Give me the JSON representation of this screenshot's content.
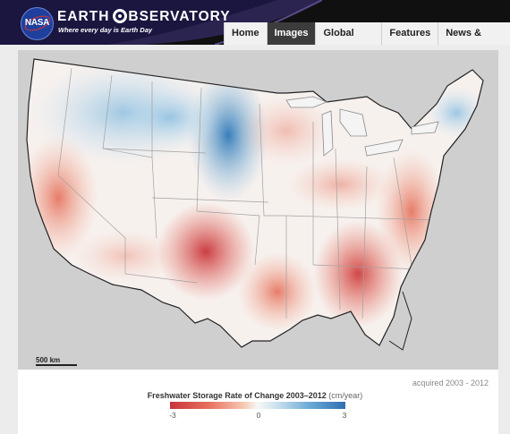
{
  "site": {
    "logo_text": "NASA",
    "brand": "EARTH OBSERVATORY",
    "brand_left": "EARTH",
    "brand_right": "BSERVATORY",
    "tagline": "Where every day is Earth Day"
  },
  "nav": {
    "items": [
      {
        "label": "Home",
        "active": false
      },
      {
        "label": "Images",
        "active": true
      },
      {
        "label": "Global Maps",
        "active": false
      },
      {
        "label": "Features",
        "active": false
      },
      {
        "label": "News & Notes",
        "active": false
      }
    ]
  },
  "map": {
    "scale_label": "500 km",
    "acquired": "acquired 2003 - 2012"
  },
  "legend": {
    "title": "Freshwater Storage Rate of Change 2003–2012",
    "unit": "(cm/year)",
    "min_label": "-3",
    "mid_label": "0",
    "max_label": "3"
  },
  "colors": {
    "decline": "#c8343b",
    "neutral": "#f7f7f7",
    "increase": "#2e6fb1",
    "ocean": "#cfcfcf"
  }
}
